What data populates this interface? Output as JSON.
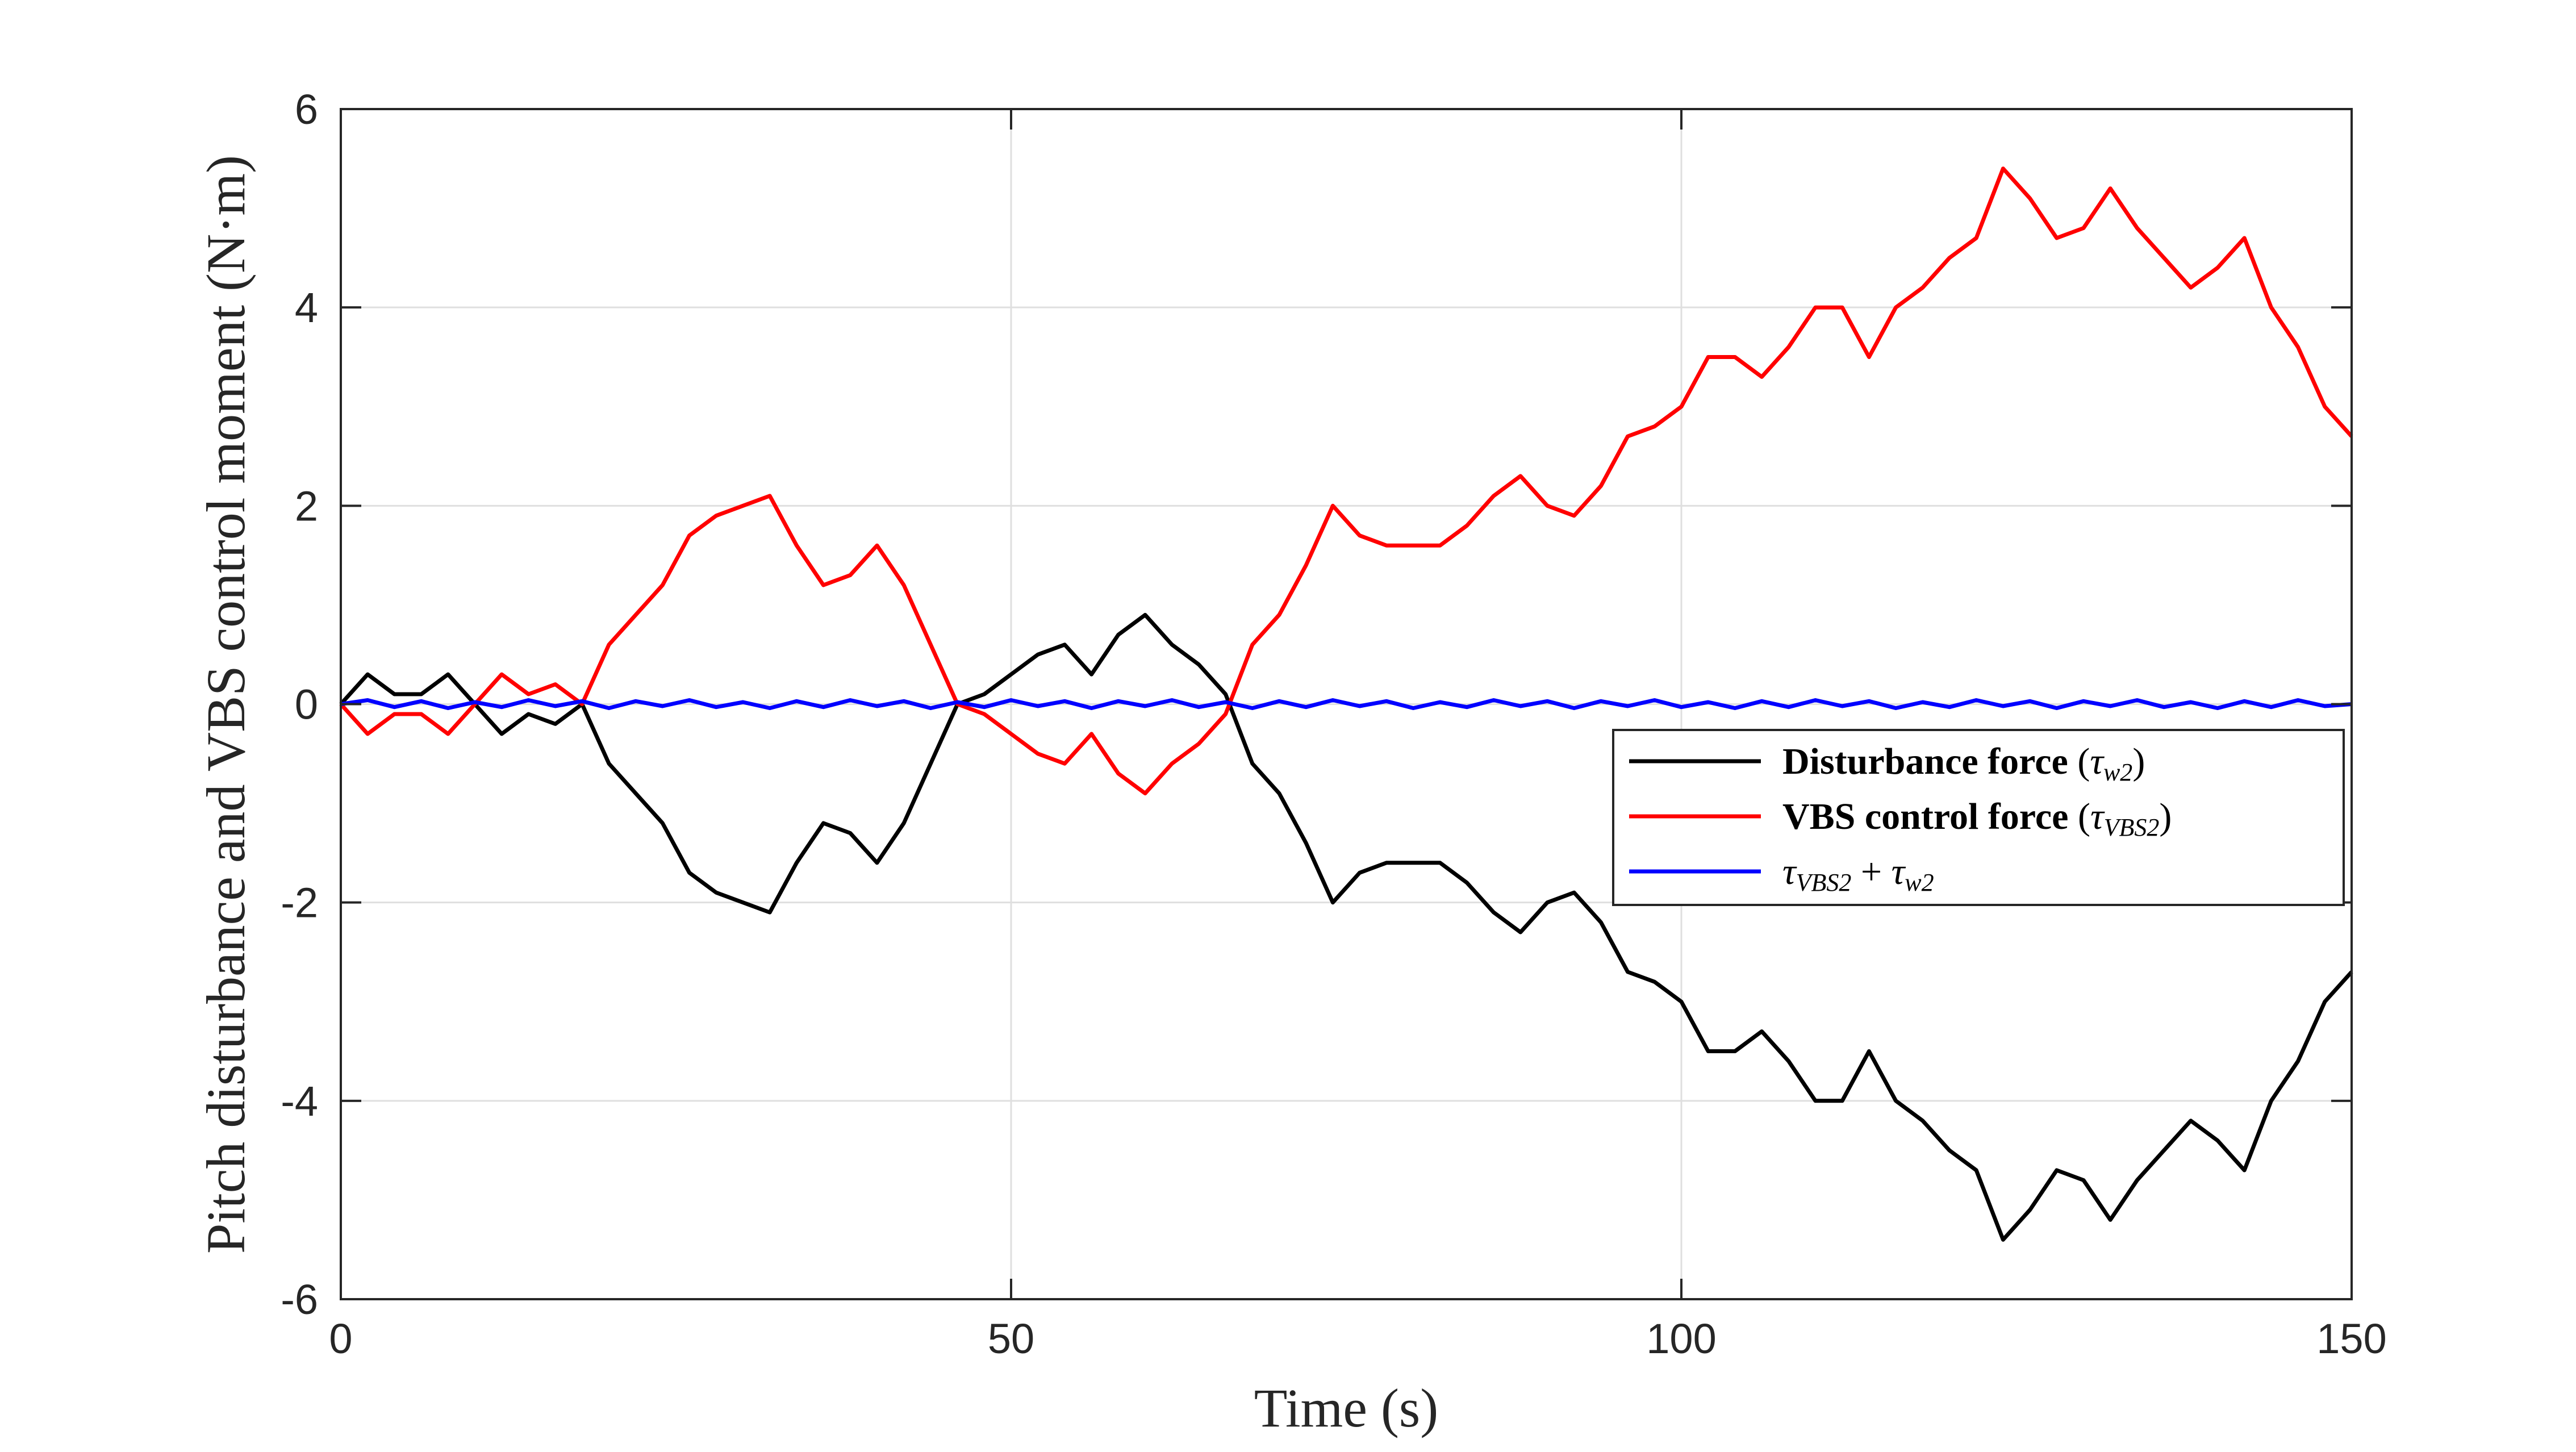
{
  "chart_data": {
    "type": "line",
    "title": "",
    "xlabel": "Time (s)",
    "ylabel": "Pitch disturbance and VBS control moment (N·m)",
    "xlim": [
      0,
      150
    ],
    "ylim": [
      -6,
      6
    ],
    "xticks": [
      "0",
      "50",
      "100",
      "150"
    ],
    "yticks": [
      "6",
      "4",
      "2",
      "0",
      "-2",
      "-4",
      "-6"
    ],
    "grid": true,
    "legend_position": "right-center",
    "x": [
      0,
      2,
      4,
      6,
      8,
      10,
      12,
      14,
      16,
      18,
      20,
      22,
      24,
      26,
      28,
      30,
      32,
      34,
      36,
      38,
      40,
      42,
      44,
      46,
      48,
      50,
      52,
      54,
      56,
      58,
      60,
      62,
      64,
      66,
      68,
      70,
      72,
      74,
      76,
      78,
      80,
      82,
      84,
      86,
      88,
      90,
      92,
      94,
      96,
      98,
      100,
      102,
      104,
      106,
      108,
      110,
      112,
      114,
      116,
      118,
      120,
      122,
      124,
      126,
      128,
      130,
      132,
      134,
      136,
      138,
      140,
      142,
      144,
      146,
      148,
      150
    ],
    "series": [
      {
        "name_text": "Disturbance force",
        "name_symbol": "τ",
        "name_sub": "w2",
        "color": "#000000",
        "values": [
          0.0,
          0.3,
          0.1,
          0.1,
          0.3,
          0.0,
          -0.3,
          -0.1,
          -0.2,
          0.0,
          -0.6,
          -0.9,
          -1.2,
          -1.7,
          -1.9,
          -2.0,
          -2.1,
          -1.6,
          -1.2,
          -1.3,
          -1.6,
          -1.2,
          -0.6,
          0.0,
          0.1,
          0.3,
          0.5,
          0.6,
          0.3,
          0.7,
          0.9,
          0.6,
          0.4,
          0.1,
          -0.6,
          -0.9,
          -1.4,
          -2.0,
          -1.7,
          -1.6,
          -1.6,
          -1.6,
          -1.8,
          -2.1,
          -2.3,
          -2.0,
          -1.9,
          -2.2,
          -2.7,
          -2.8,
          -3.0,
          -3.5,
          -3.5,
          -3.3,
          -3.6,
          -4.0,
          -4.0,
          -3.5,
          -4.0,
          -4.2,
          -4.5,
          -4.7,
          -5.4,
          -5.1,
          -4.7,
          -4.8,
          -5.2,
          -4.8,
          -4.5,
          -4.2,
          -4.4,
          -4.7,
          -4.0,
          -3.6,
          -3.0,
          -2.7
        ]
      },
      {
        "name_text": "VBS control force",
        "name_symbol": "τ",
        "name_sub": "VBS2",
        "color": "#ff0000",
        "values": [
          0.0,
          -0.3,
          -0.1,
          -0.1,
          -0.3,
          0.0,
          0.3,
          0.1,
          0.2,
          0.0,
          0.6,
          0.9,
          1.2,
          1.7,
          1.9,
          2.0,
          2.1,
          1.6,
          1.2,
          1.3,
          1.6,
          1.2,
          0.6,
          0.0,
          -0.1,
          -0.3,
          -0.5,
          -0.6,
          -0.3,
          -0.7,
          -0.9,
          -0.6,
          -0.4,
          -0.1,
          0.6,
          0.9,
          1.4,
          2.0,
          1.7,
          1.6,
          1.6,
          1.6,
          1.8,
          2.1,
          2.3,
          2.0,
          1.9,
          2.2,
          2.7,
          2.8,
          3.0,
          3.5,
          3.5,
          3.3,
          3.6,
          4.0,
          4.0,
          3.5,
          4.0,
          4.2,
          4.5,
          4.7,
          5.4,
          5.1,
          4.7,
          4.8,
          5.2,
          4.8,
          4.5,
          4.2,
          4.4,
          4.7,
          4.0,
          3.6,
          3.0,
          2.7
        ]
      },
      {
        "name_symbol": "τ",
        "name_sub": "VBS2",
        "name_plus": "+",
        "name_symbol2": "τ",
        "name_sub2": "w2",
        "color": "#0000ff",
        "values": [
          0.0,
          0.04,
          -0.03,
          0.03,
          -0.04,
          0.02,
          -0.03,
          0.04,
          -0.02,
          0.03,
          -0.04,
          0.03,
          -0.02,
          0.04,
          -0.03,
          0.02,
          -0.04,
          0.03,
          -0.03,
          0.04,
          -0.02,
          0.03,
          -0.04,
          0.02,
          -0.03,
          0.04,
          -0.02,
          0.03,
          -0.04,
          0.03,
          -0.02,
          0.04,
          -0.03,
          0.02,
          -0.04,
          0.03,
          -0.03,
          0.04,
          -0.02,
          0.03,
          -0.04,
          0.02,
          -0.03,
          0.04,
          -0.02,
          0.03,
          -0.04,
          0.03,
          -0.02,
          0.04,
          -0.03,
          0.02,
          -0.04,
          0.03,
          -0.03,
          0.04,
          -0.02,
          0.03,
          -0.04,
          0.02,
          -0.03,
          0.04,
          -0.02,
          0.03,
          -0.04,
          0.03,
          -0.02,
          0.04,
          -0.03,
          0.02,
          -0.04,
          0.03,
          -0.03,
          0.04,
          -0.02,
          0.0
        ]
      }
    ]
  }
}
